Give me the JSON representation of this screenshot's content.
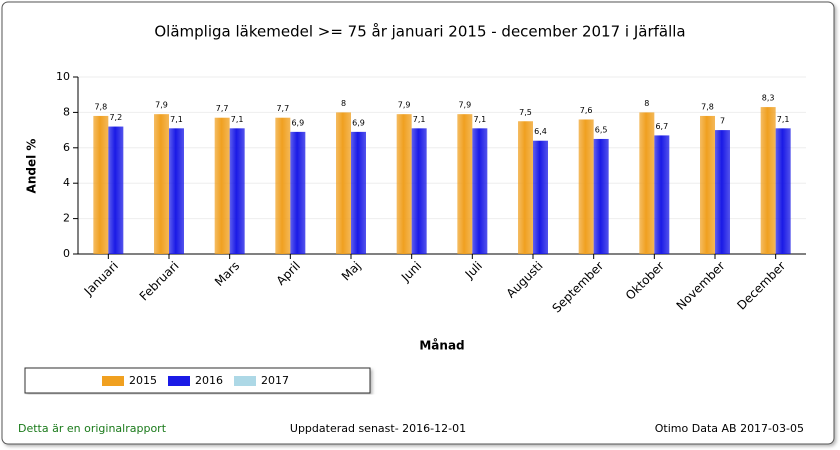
{
  "chart_data": {
    "type": "bar",
    "title": "Olämpliga läkemedel >= 75 år januari 2015 - december 2017 i  Järfälla",
    "x_label": "Månad",
    "y_label": "Andel %",
    "categories": [
      "Januari",
      "Februari",
      "Mars",
      "April",
      "Maj",
      "Juni",
      "Juli",
      "Augusti",
      "September",
      "Oktober",
      "November",
      "December"
    ],
    "series": [
      {
        "name": "2015",
        "color": "#f0a020",
        "values": [
          7.8,
          7.9,
          7.7,
          7.7,
          8,
          7.9,
          7.9,
          7.5,
          7.6,
          8,
          7.8,
          8.3
        ],
        "value_labels": [
          "7,8",
          "7,9",
          "7,7",
          "7,7",
          "8",
          "7,9",
          "7,9",
          "7,5",
          "7,6",
          "8",
          "7,8",
          "8,3"
        ]
      },
      {
        "name": "2016",
        "color": "#1a1ae6",
        "values": [
          7.2,
          7.1,
          7.1,
          6.9,
          6.9,
          7.1,
          7.1,
          6.4,
          6.5,
          6.7,
          7,
          7.1
        ],
        "value_labels": [
          "7,2",
          "7,1",
          "7,1",
          "6,9",
          "6,9",
          "7,1",
          "7,1",
          "6,4",
          "6,5",
          "6,7",
          "7",
          "7,1"
        ]
      },
      {
        "name": "2017",
        "color": "#add8e6",
        "values": [
          null,
          null,
          null,
          null,
          null,
          null,
          null,
          null,
          null,
          null,
          null,
          null
        ]
      }
    ],
    "ylim": [
      0,
      10
    ],
    "yticks": [
      0,
      2,
      4,
      6,
      8,
      10
    ],
    "grid": true,
    "legend": "bottom-left",
    "footer": {
      "left": "Detta är en originalrapport",
      "center": "Uppdaterad senast- 2016-12-01",
      "right": "Otimo Data AB 2017-03-05"
    }
  }
}
